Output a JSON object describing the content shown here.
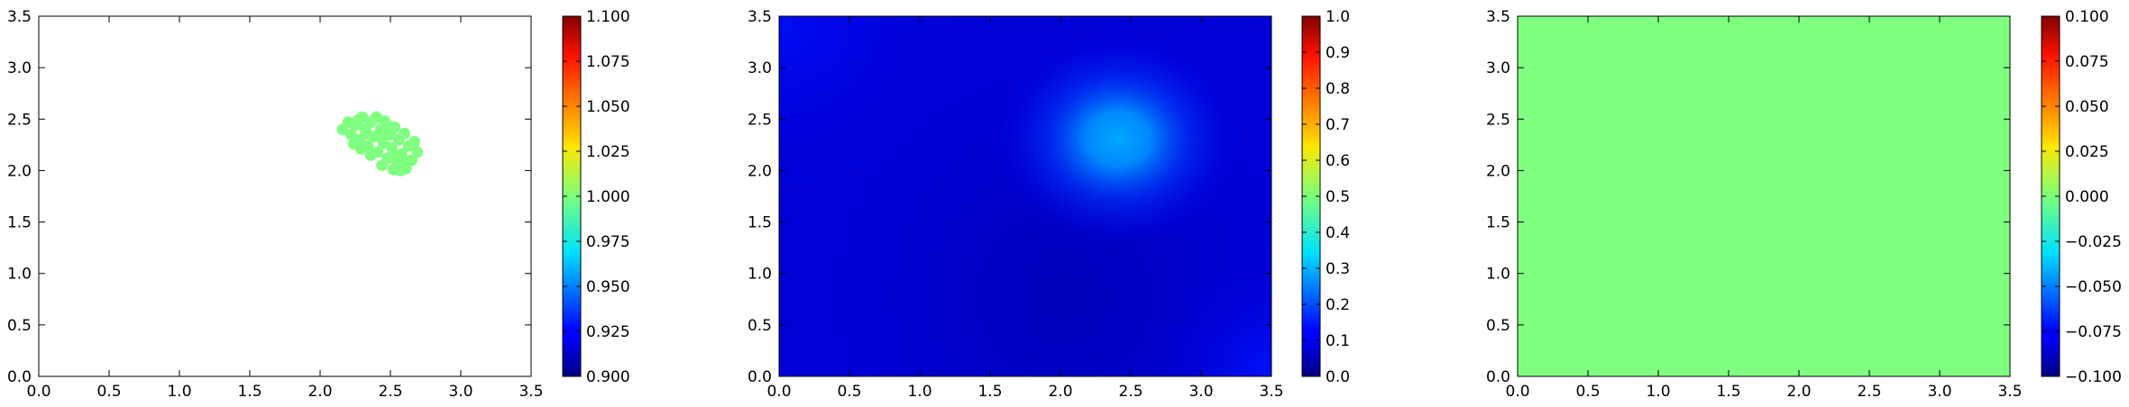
{
  "chart_data": [
    {
      "type": "scatter",
      "description_visible": "scattered markers forming a blob",
      "marker_color": "#80ff80",
      "xlim": [
        0.0,
        3.5
      ],
      "ylim": [
        0.0,
        3.5
      ],
      "xticks": [
        "0.0",
        "0.5",
        "1.0",
        "1.5",
        "2.0",
        "2.5",
        "3.0",
        "3.5"
      ],
      "yticks": [
        "0.0",
        "0.5",
        "1.0",
        "1.5",
        "2.0",
        "2.5",
        "3.0",
        "3.5"
      ],
      "points": [
        [
          2.16,
          2.4
        ],
        [
          2.2,
          2.47
        ],
        [
          2.22,
          2.35
        ],
        [
          2.25,
          2.44
        ],
        [
          2.28,
          2.3
        ],
        [
          2.3,
          2.52
        ],
        [
          2.32,
          2.4
        ],
        [
          2.34,
          2.24
        ],
        [
          2.36,
          2.47
        ],
        [
          2.38,
          2.33
        ],
        [
          2.4,
          2.52
        ],
        [
          2.41,
          2.18
        ],
        [
          2.43,
          2.4
        ],
        [
          2.45,
          2.27
        ],
        [
          2.46,
          2.48
        ],
        [
          2.48,
          2.12
        ],
        [
          2.5,
          2.35
        ],
        [
          2.51,
          2.22
        ],
        [
          2.53,
          2.42
        ],
        [
          2.55,
          2.06
        ],
        [
          2.56,
          2.3
        ],
        [
          2.58,
          2.16
        ],
        [
          2.6,
          2.36
        ],
        [
          2.61,
          2.02
        ],
        [
          2.63,
          2.24
        ],
        [
          2.65,
          2.1
        ],
        [
          2.67,
          2.28
        ],
        [
          2.69,
          2.18
        ],
        [
          2.24,
          2.26
        ],
        [
          2.29,
          2.21
        ],
        [
          2.44,
          2.05
        ],
        [
          2.52,
          2.01
        ],
        [
          2.57,
          2.0
        ],
        [
          2.36,
          2.15
        ],
        [
          2.42,
          2.33
        ],
        [
          2.48,
          2.44
        ],
        [
          2.54,
          2.14
        ],
        [
          2.6,
          2.08
        ],
        [
          2.33,
          2.36
        ],
        [
          2.27,
          2.49
        ]
      ],
      "colorbar": {
        "min": 0.9,
        "max": 1.1,
        "ticks": [
          "0.900",
          "0.925",
          "0.950",
          "0.975",
          "1.000",
          "1.025",
          "1.050",
          "1.075",
          "1.100"
        ]
      }
    },
    {
      "type": "heatmap",
      "colormap": "jet",
      "xlim": [
        0.0,
        3.5
      ],
      "ylim": [
        0.0,
        3.5
      ],
      "xticks": [
        "0.0",
        "0.5",
        "1.0",
        "1.5",
        "2.0",
        "2.5",
        "3.0",
        "3.5"
      ],
      "yticks": [
        "0.0",
        "0.5",
        "1.0",
        "1.5",
        "2.0",
        "2.5",
        "3.0",
        "3.5"
      ],
      "field": {
        "background": 0.1,
        "peak": {
          "x": 2.45,
          "y": 2.25,
          "value": 0.28
        },
        "corner_tints": [
          {
            "x": 0.0,
            "y": 3.5,
            "value": 0.14
          },
          {
            "x": 3.5,
            "y": 0.0,
            "value": 0.16
          }
        ]
      },
      "colorbar": {
        "min": 0.0,
        "max": 1.0,
        "ticks": [
          "0.0",
          "0.1",
          "0.2",
          "0.3",
          "0.4",
          "0.5",
          "0.6",
          "0.7",
          "0.8",
          "0.9",
          "1.0"
        ]
      }
    },
    {
      "type": "heatmap",
      "colormap": "jet",
      "uniform_value": 0.0,
      "fill_color": "#80ff80",
      "xlim": [
        0.0,
        3.5
      ],
      "ylim": [
        0.0,
        3.5
      ],
      "xticks": [
        "0.0",
        "0.5",
        "1.0",
        "1.5",
        "2.0",
        "2.5",
        "3.0",
        "3.5"
      ],
      "yticks": [
        "0.0",
        "0.5",
        "1.0",
        "1.5",
        "2.0",
        "2.5",
        "3.0",
        "3.5"
      ],
      "colorbar": {
        "min": -0.1,
        "max": 0.1,
        "ticks": [
          "−0.100",
          "−0.075",
          "−0.050",
          "−0.025",
          "0.000",
          "0.025",
          "0.050",
          "0.075",
          "0.100"
        ]
      }
    }
  ]
}
